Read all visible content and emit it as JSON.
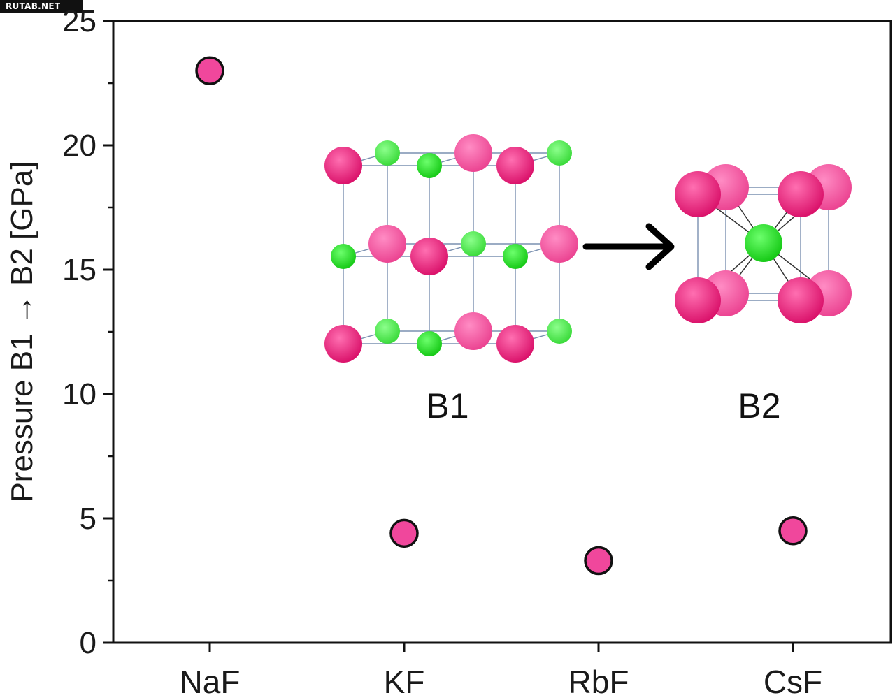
{
  "watermark": "RUTAB.NET",
  "chart_data": {
    "type": "scatter",
    "categories": [
      "NaF",
      "KF",
      "RbF",
      "CsF"
    ],
    "values": [
      23.0,
      4.4,
      3.3,
      4.5
    ],
    "ylabel": "Pressure B1 → B2 [GPa]",
    "ylim": [
      0,
      25
    ],
    "yticks": [
      0,
      5,
      10,
      15,
      20,
      25
    ],
    "grid": false,
    "marker_color": "#f0479c",
    "marker_edge": "#111111",
    "inset": {
      "left_label": "B1",
      "right_label": "B2",
      "cation_color": "#e8106f",
      "anion_color": "#22e022"
    }
  }
}
